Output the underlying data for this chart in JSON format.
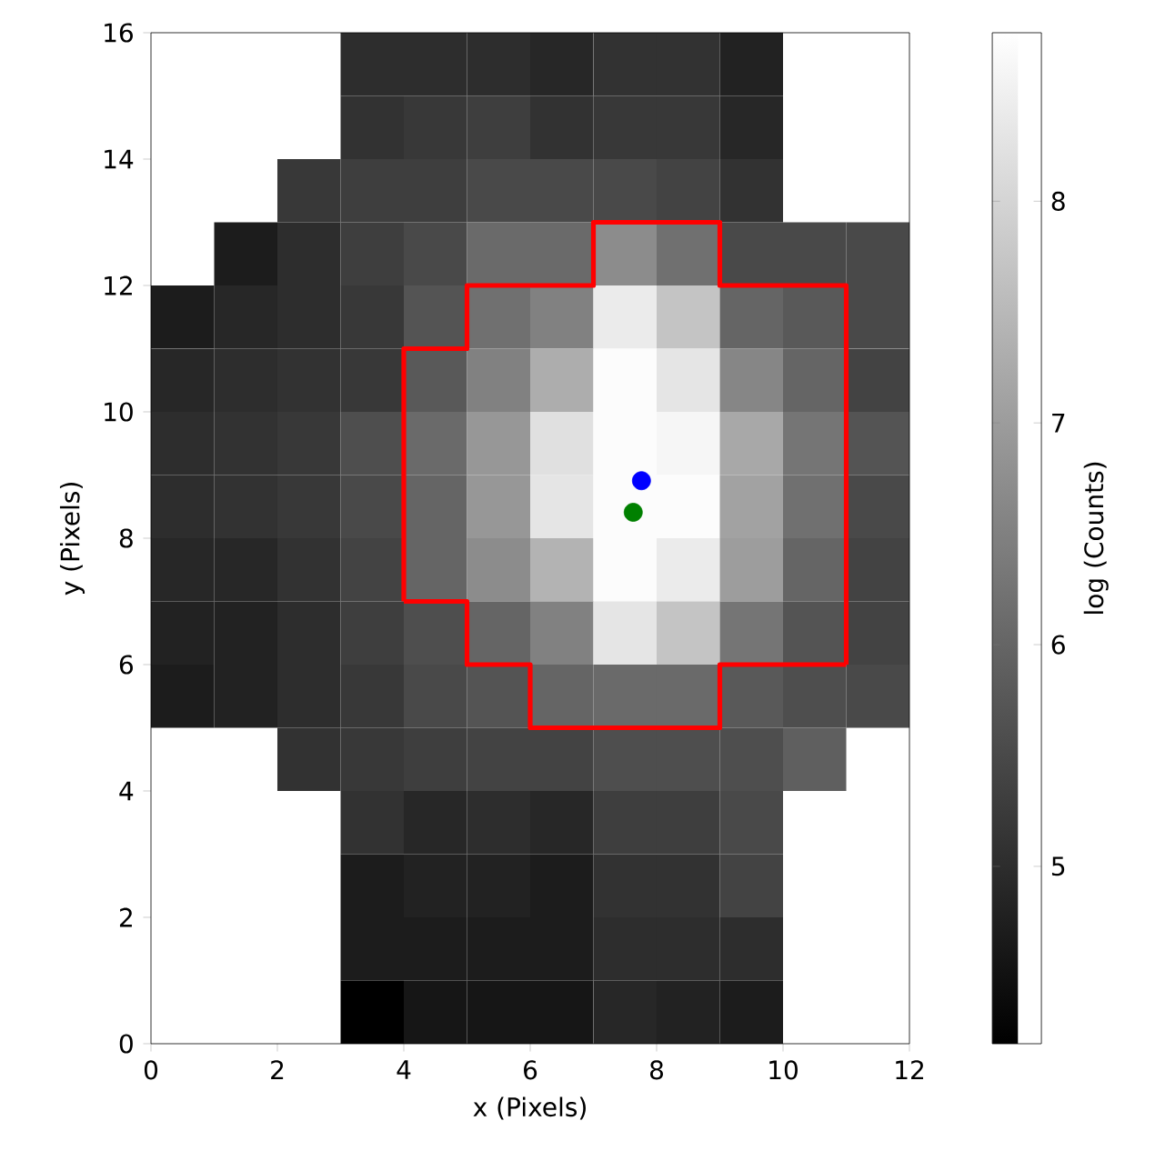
{
  "chart_data": {
    "type": "heatmap",
    "xlabel": "x (Pixels)",
    "ylabel": "y (Pixels)",
    "clabel": "log (Counts)",
    "cells": [
      [
        null,
        null,
        null,
        5.0,
        5.0,
        5.0,
        4.9,
        5.1,
        5.1,
        4.8,
        null,
        null
      ],
      [
        null,
        null,
        null,
        5.1,
        5.2,
        5.3,
        5.1,
        5.2,
        5.2,
        4.9,
        null,
        null
      ],
      [
        null,
        null,
        5.2,
        5.3,
        5.3,
        5.5,
        5.5,
        5.5,
        5.4,
        5.1,
        null,
        null
      ],
      [
        null,
        4.7,
        5.0,
        5.3,
        5.5,
        6.1,
        6.1,
        6.7,
        6.2,
        5.5,
        5.5,
        5.5
      ],
      [
        4.7,
        4.9,
        5.0,
        5.2,
        5.7,
        6.2,
        6.5,
        8.4,
        7.7,
        6.0,
        5.8,
        5.5
      ],
      [
        4.9,
        5.0,
        5.1,
        5.2,
        5.8,
        6.5,
        7.3,
        8.7,
        8.3,
        6.6,
        6.0,
        5.4
      ],
      [
        5.0,
        5.1,
        5.2,
        5.6,
        6.1,
        6.9,
        8.2,
        8.7,
        8.6,
        7.2,
        6.3,
        5.7
      ],
      [
        5.0,
        5.1,
        5.2,
        5.5,
        6.0,
        6.9,
        8.3,
        8.7,
        8.7,
        7.1,
        6.2,
        5.5
      ],
      [
        4.9,
        4.9,
        5.1,
        5.4,
        6.0,
        6.7,
        7.4,
        8.7,
        8.4,
        7.0,
        6.0,
        5.4
      ],
      [
        4.8,
        4.8,
        5.0,
        5.3,
        5.6,
        6.0,
        6.5,
        8.3,
        7.7,
        6.3,
        5.7,
        5.4
      ],
      [
        4.7,
        4.8,
        5.0,
        5.2,
        5.5,
        5.7,
        6.0,
        6.1,
        6.1,
        5.8,
        5.6,
        5.5
      ],
      [
        null,
        null,
        5.1,
        5.2,
        5.3,
        5.4,
        5.4,
        5.6,
        5.6,
        5.6,
        5.9,
        null
      ],
      [
        null,
        null,
        null,
        5.1,
        4.9,
        5.0,
        4.9,
        5.3,
        5.3,
        5.5,
        null,
        null
      ],
      [
        null,
        null,
        null,
        4.7,
        4.8,
        4.8,
        4.7,
        5.1,
        5.1,
        5.4,
        null,
        null
      ],
      [
        null,
        null,
        null,
        4.7,
        4.7,
        4.7,
        4.7,
        5.0,
        5.0,
        5.0,
        null,
        null
      ],
      [
        null,
        null,
        null,
        4.2,
        4.6,
        4.6,
        4.6,
        4.9,
        4.8,
        4.7,
        null,
        null
      ]
    ],
    "clim": [
      4.2,
      8.76
    ],
    "cticks": [
      5,
      6,
      7,
      8
    ],
    "xlim": [
      0,
      12
    ],
    "xticks": [
      0,
      2,
      4,
      6,
      8,
      10,
      12
    ],
    "ylim": [
      0,
      16
    ],
    "yticks": [
      0,
      2,
      4,
      6,
      8,
      10,
      12,
      14,
      16
    ],
    "series": [
      {
        "type": "line",
        "color": "#ff0000",
        "x": [
          4,
          4,
          5,
          5,
          7,
          7,
          9,
          9,
          11,
          11
        ],
        "values": [
          7,
          11,
          11,
          12,
          12,
          13,
          13,
          12,
          12,
          6
        ]
      },
      {
        "type": "line",
        "color": "#ff0000",
        "x": [
          4,
          5,
          5,
          6,
          6,
          9,
          9,
          11
        ],
        "values": [
          7,
          7,
          6,
          6,
          5,
          5,
          6,
          6
        ]
      },
      {
        "type": "scatter",
        "color": "#0000ff",
        "x": [
          7.76
        ],
        "values": [
          8.91
        ]
      },
      {
        "type": "scatter",
        "color": "#008000",
        "x": [
          7.63
        ],
        "values": [
          8.41
        ]
      }
    ]
  }
}
